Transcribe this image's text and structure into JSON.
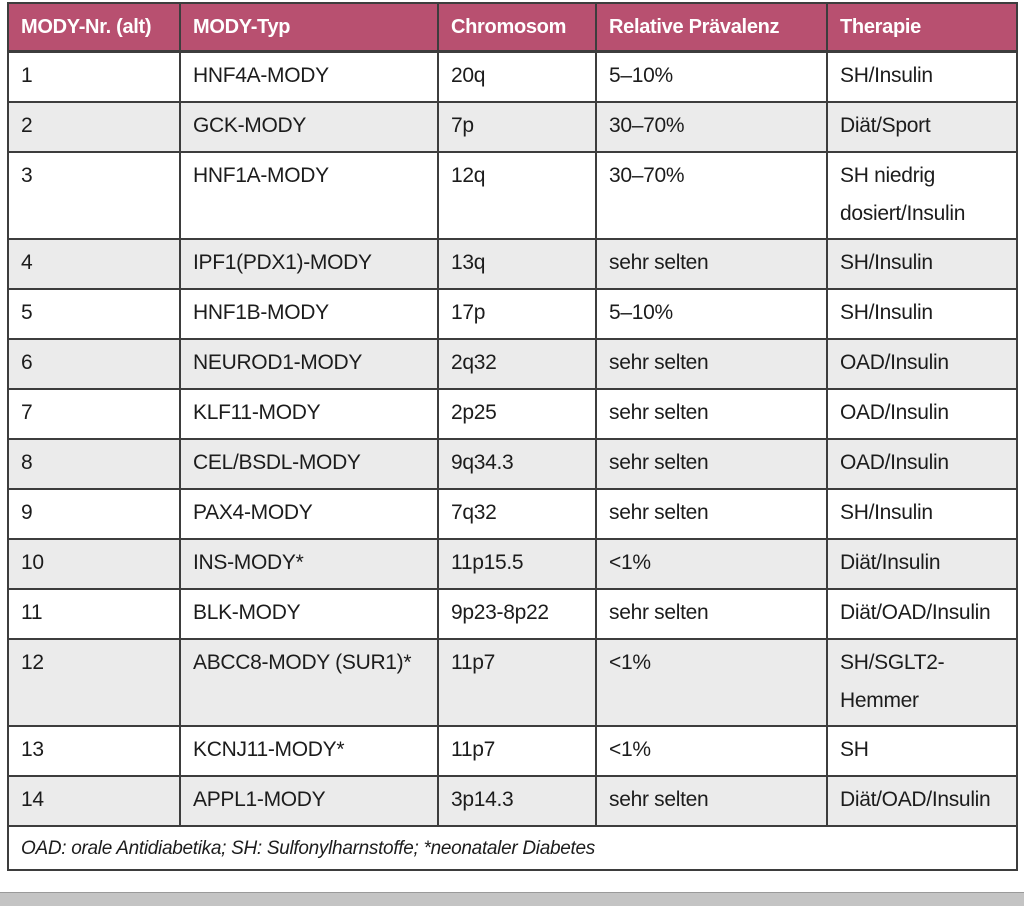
{
  "page": {
    "colors": {
      "header_bg": "#b85070",
      "header_text": "#ffffff",
      "row_bg": "#ffffff",
      "row_alt_bg": "#ebebeb",
      "border": "#3d3d3d",
      "text": "#1c1c1c",
      "bottom_strip": "#c4c4c4"
    }
  },
  "table": {
    "headers": [
      "MODY-Nr. (alt)",
      "MODY-Typ",
      "Chromosom",
      "Relative Prävalenz",
      "Therapie"
    ],
    "column_keys": [
      "nr",
      "typ",
      "chromosom",
      "praevalenz",
      "therapie"
    ],
    "rows": [
      {
        "nr": "1",
        "typ": "HNF4A-MODY",
        "chromosom": "20q",
        "praevalenz": "5–10%",
        "therapie": "SH/Insulin"
      },
      {
        "nr": "2",
        "typ": "GCK-MODY",
        "chromosom": "7p",
        "praevalenz": "30–70%",
        "therapie": "Diät/Sport"
      },
      {
        "nr": "3",
        "typ": "HNF1A-MODY",
        "chromosom": "12q",
        "praevalenz": "30–70%",
        "therapie": "SH niedrig\ndosiert/Insulin"
      },
      {
        "nr": "4",
        "typ": "IPF1(PDX1)-MODY",
        "chromosom": "13q",
        "praevalenz": "sehr selten",
        "therapie": "SH/Insulin"
      },
      {
        "nr": "5",
        "typ": "HNF1B-MODY",
        "chromosom": "17p",
        "praevalenz": "5–10%",
        "therapie": "SH/Insulin"
      },
      {
        "nr": "6",
        "typ": "NEUROD1-MODY",
        "chromosom": "2q32",
        "praevalenz": "sehr selten",
        "therapie": "OAD/Insulin"
      },
      {
        "nr": "7",
        "typ": "KLF11-MODY",
        "chromosom": "2p25",
        "praevalenz": "sehr selten",
        "therapie": "OAD/Insulin"
      },
      {
        "nr": "8",
        "typ": "CEL/BSDL-MODY",
        "chromosom": "9q34.3",
        "praevalenz": "sehr selten",
        "therapie": "OAD/Insulin"
      },
      {
        "nr": "9",
        "typ": "PAX4-MODY",
        "chromosom": "7q32",
        "praevalenz": "sehr selten",
        "therapie": "SH/Insulin"
      },
      {
        "nr": "10",
        "typ": "INS-MODY*",
        "chromosom": "11p15.5",
        "praevalenz": "<1%",
        "therapie": "Diät/Insulin"
      },
      {
        "nr": "11",
        "typ": "BLK-MODY",
        "chromosom": "9p23-8p22",
        "praevalenz": "sehr selten",
        "therapie": "Diät/OAD/Insulin"
      },
      {
        "nr": "12",
        "typ": "ABCC8-MODY (SUR1)*",
        "chromosom": "11p7",
        "praevalenz": "<1%",
        "therapie": "SH/SGLT2-\nHemmer"
      },
      {
        "nr": "13",
        "typ": "KCNJ11-MODY*",
        "chromosom": "11p7",
        "praevalenz": "<1%",
        "therapie": "SH"
      },
      {
        "nr": "14",
        "typ": "APPL1-MODY",
        "chromosom": "3p14.3",
        "praevalenz": "sehr selten",
        "therapie": "Diät/OAD/Insulin"
      }
    ],
    "footnote": "OAD: orale Antidiabetika; SH: Sulfonylharnstoffe; *neonataler Diabetes"
  }
}
